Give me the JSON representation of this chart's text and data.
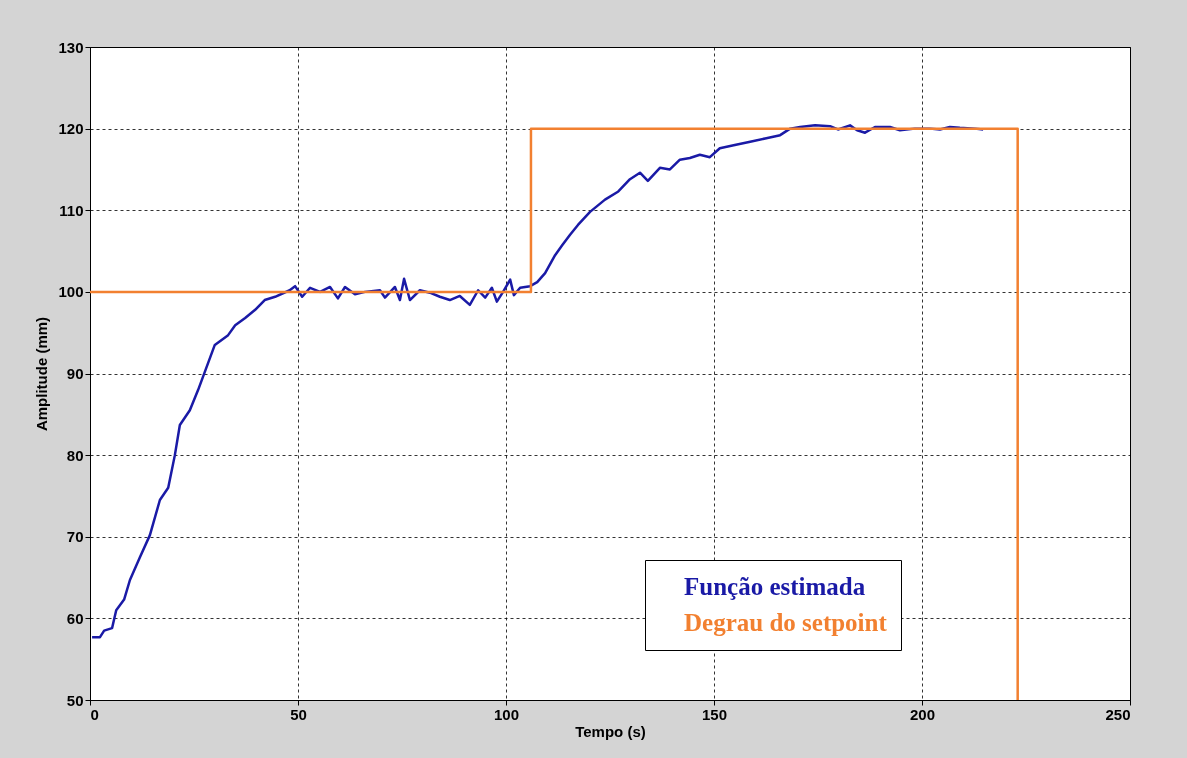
{
  "chart_data": {
    "type": "line",
    "xlabel": "Tempo (s)",
    "ylabel": "Amplitude (mm)",
    "xlim": [
      0,
      250
    ],
    "xticks": [
      0,
      50,
      100,
      150,
      200,
      250
    ],
    "ylim": [
      50,
      130
    ],
    "yticks": [
      50,
      60,
      70,
      80,
      90,
      100,
      110,
      120,
      130
    ],
    "grid": true,
    "legend": "bottom right",
    "line_style": "solid",
    "marker": "none",
    "series": [
      {
        "name": "Função estimada",
        "color": "#1a1aa6",
        "x": [
          0.5,
          2.4,
          3.4,
          5.3,
          6.3,
          8.2,
          9.6,
          12.0,
          14.4,
          16.8,
          18.8,
          20.4,
          21.6,
          24.0,
          26.0,
          27.6,
          30.0,
          33.2,
          34.9,
          37.3,
          39.7,
          42.0,
          44.5,
          48.0,
          49.3,
          51.0,
          52.9,
          55.3,
          57.7,
          59.6,
          61.3,
          63.7,
          66.1,
          69.7,
          70.9,
          73.3,
          74.5,
          75.5,
          76.9,
          79.3,
          81.7,
          84.1,
          86.5,
          88.9,
          91.3,
          93.3,
          95.0,
          96.6,
          97.8,
          99.3,
          101.0,
          101.9,
          103.4,
          105.8,
          107.5,
          109.4,
          111.8,
          113.5,
          115.4,
          117.3,
          120.2,
          123.8,
          127.0,
          129.8,
          132.2,
          134.1,
          137.0,
          139.4,
          141.8,
          144.2,
          146.6,
          149.0,
          151.4,
          155.0,
          158.7,
          162.3,
          165.9,
          168.3,
          170.7,
          174.3,
          177.9,
          179.8,
          182.7,
          184.4,
          186.3,
          188.7,
          192.3,
          194.7,
          198.3,
          201.9,
          204.3,
          206.7,
          209.1,
          212.7,
          214.7
        ],
        "values": [
          57.7,
          57.7,
          58.5,
          58.8,
          61.0,
          62.3,
          64.7,
          67.5,
          70.2,
          74.5,
          76.0,
          80.0,
          83.7,
          85.5,
          88.0,
          90.2,
          93.5,
          94.7,
          95.9,
          96.8,
          97.8,
          99.0,
          99.4,
          100.2,
          100.7,
          99.4,
          100.5,
          100.0,
          100.6,
          99.2,
          100.6,
          99.7,
          100.0,
          100.2,
          99.3,
          100.6,
          99.0,
          101.6,
          99.0,
          100.2,
          99.9,
          99.4,
          99.0,
          99.5,
          98.4,
          100.2,
          99.3,
          100.5,
          98.8,
          100.0,
          101.5,
          99.6,
          100.5,
          100.7,
          101.2,
          102.3,
          104.5,
          105.7,
          107.0,
          108.2,
          109.8,
          111.3,
          112.3,
          113.8,
          114.6,
          113.6,
          115.2,
          115.0,
          116.2,
          116.4,
          116.8,
          116.5,
          117.6,
          118.0,
          118.4,
          118.8,
          119.2,
          120.0,
          120.2,
          120.4,
          120.3,
          119.9,
          120.4,
          119.8,
          119.5,
          120.2,
          120.2,
          119.8,
          120.0,
          120.0,
          119.9,
          120.2,
          120.1,
          120.0,
          119.9
        ]
      },
      {
        "name": "Degrau do setpoint",
        "color": "#f28030",
        "x": [
          0,
          106,
          106,
          223,
          223
        ],
        "values": [
          100,
          100,
          120,
          120,
          50
        ]
      }
    ]
  }
}
